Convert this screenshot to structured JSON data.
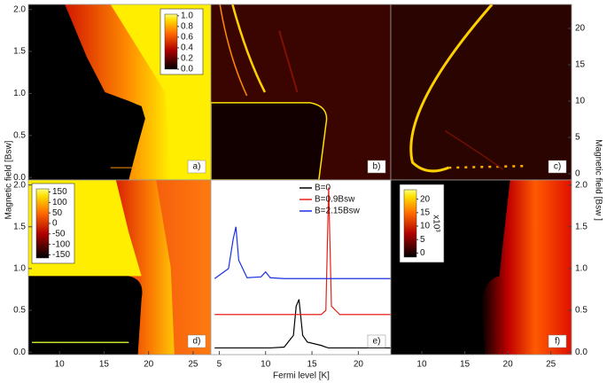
{
  "chart_data": [
    {
      "type": "heatmap",
      "label": "a)",
      "ylabel": "Magnetic field [Bsw]",
      "xlim": [
        6.5,
        27
      ],
      "ylim": [
        -0.03,
        2.06
      ],
      "yticks": [
        {
          "value": 0,
          "label": "0.0"
        },
        0.5,
        {
          "value": 1,
          "label": "1.0"
        },
        1.5,
        {
          "value": 2,
          "label": "2.0"
        }
      ],
      "colorbar": {
        "lim": [
          0,
          1.03
        ],
        "ticks": [
          {
            "value": 0,
            "label": "0.0"
          },
          0.2,
          0.4,
          0.6,
          0.8,
          {
            "value": 1,
            "label": "1.0"
          }
        ]
      }
    },
    {
      "type": "heatmap",
      "label": "b)",
      "xlim": [
        4.1,
        23.5
      ],
      "ylim": [
        -0.03,
        2.06
      ]
    },
    {
      "type": "heatmap",
      "label": "c)",
      "y2label": "Magnetic field [Bsw ]",
      "xlim": [
        6.4,
        27.4
      ],
      "y2lim": [
        -0.85,
        23.3
      ],
      "y2ticks": [
        0,
        5,
        10,
        15,
        20
      ]
    },
    {
      "type": "heatmap",
      "label": "d)",
      "xlim": [
        6.5,
        27
      ],
      "ylim": [
        -0.03,
        2.06
      ],
      "xticks": [
        10,
        15,
        20,
        25
      ],
      "yticks": [
        {
          "value": 0,
          "label": "0.0"
        },
        0.5,
        {
          "value": 1,
          "label": "1.0"
        },
        1.5,
        {
          "value": 2,
          "label": "2.0"
        }
      ],
      "colorbar": {
        "lim": [
          -165,
          165
        ],
        "ticks": [
          150,
          100,
          50,
          0,
          -50,
          -100,
          -150
        ]
      }
    },
    {
      "type": "line",
      "label": "e)",
      "xlabel": "Fermi level [K]",
      "xlim": [
        4.1,
        23.5
      ],
      "ylim": [
        -0.03,
        2.06
      ],
      "xticks": [
        5,
        10,
        15,
        20
      ],
      "x": [
        4.5,
        6,
        6.5,
        6.8,
        7.1,
        8,
        9.5,
        10,
        10.5,
        12,
        13,
        13.3,
        13.6,
        14,
        14.5,
        16,
        16.5,
        16.8,
        17.1,
        18,
        20,
        23.5
      ],
      "series": [
        {
          "name": "B=0",
          "color": "#000000",
          "values": [
            0.05,
            0.05,
            0.05,
            0.05,
            0.05,
            0.05,
            0.05,
            0.05,
            0.05,
            0.06,
            0.2,
            0.55,
            0.63,
            0.2,
            0.12,
            0.08,
            0.06,
            0.05,
            0.05,
            0.05,
            0.05,
            0.05
          ]
        },
        {
          "name": "B=0.9Bsw",
          "color": "#e8201a",
          "values": [
            0.45,
            0.45,
            0.45,
            0.45,
            0.45,
            0.45,
            0.45,
            0.45,
            0.45,
            0.45,
            0.45,
            0.45,
            0.45,
            0.45,
            0.45,
            0.45,
            0.5,
            1.97,
            0.55,
            0.45,
            0.45,
            0.45
          ]
        },
        {
          "name": "B=2.15Bsw",
          "color": "#1a2ee8",
          "values": [
            0.88,
            1.0,
            1.35,
            1.5,
            1.1,
            0.89,
            0.9,
            0.96,
            0.89,
            0.88,
            0.88,
            0.88,
            0.88,
            0.88,
            0.88,
            0.88,
            0.88,
            0.88,
            0.88,
            0.88,
            0.88,
            0.88
          ]
        }
      ]
    },
    {
      "type": "heatmap",
      "label": "f)",
      "xlim": [
        6.4,
        27.4
      ],
      "y2lim": [
        -0.03,
        2.06
      ],
      "xticks": [
        10,
        15,
        20,
        25
      ],
      "y2ticks": [
        {
          "value": 0,
          "label": "0.0"
        },
        0.5,
        {
          "value": 1,
          "label": "1.0"
        },
        1.5,
        {
          "value": 2,
          "label": "2.0"
        }
      ],
      "colorbar": {
        "lim": [
          -1.5,
          23.5
        ],
        "ticks": [
          20,
          15,
          10,
          5,
          0
        ],
        "label": "x10³"
      }
    }
  ]
}
